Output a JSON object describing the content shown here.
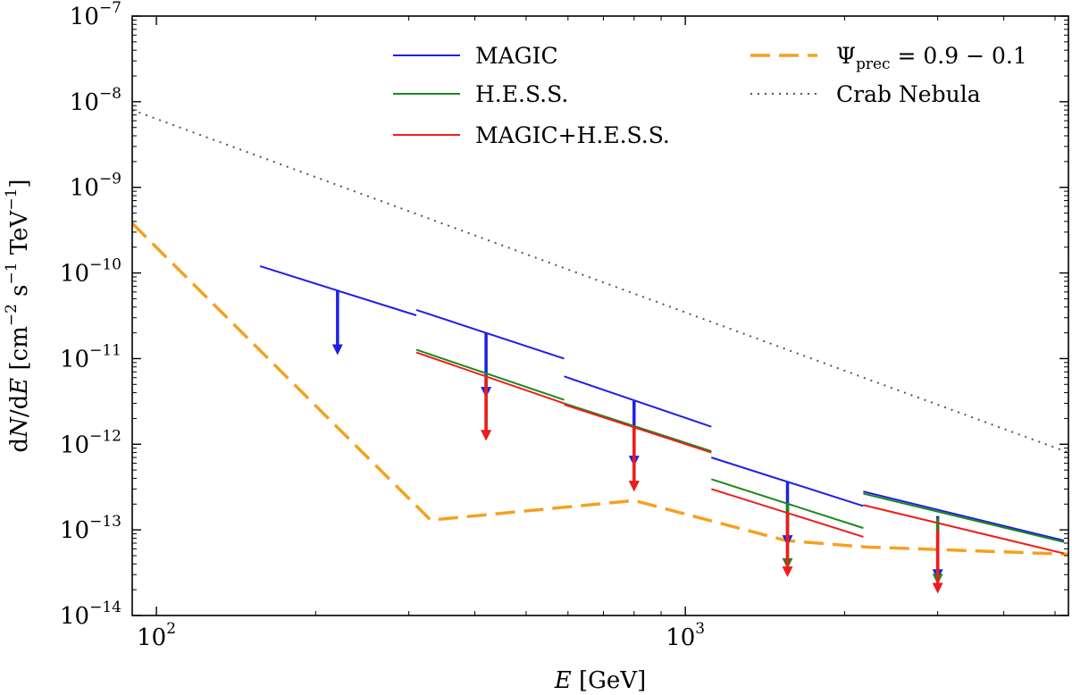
{
  "chart_data": {
    "type": "line",
    "title": "",
    "xscale": "log",
    "yscale": "log",
    "xlim": [
      90,
      5300
    ],
    "ylim": [
      1e-14,
      1e-07
    ],
    "xlabel": {
      "italic": "E",
      "rest": " [GeV]"
    },
    "ylabel": {
      "parts": [
        "d",
        "N",
        "/d",
        "E",
        " [cm",
        "−2",
        " s",
        "−1",
        " TeV",
        "−1",
        "]"
      ]
    },
    "x_ticks": [
      {
        "value": 100,
        "base": "10",
        "exp": "2"
      },
      {
        "value": 1000,
        "base": "10",
        "exp": "3"
      }
    ],
    "y_ticks": [
      {
        "value": 1e-14,
        "base": "10",
        "exp": "−14"
      },
      {
        "value": 1e-13,
        "base": "10",
        "exp": "−13"
      },
      {
        "value": 1e-12,
        "base": "10",
        "exp": "−12"
      },
      {
        "value": 1e-11,
        "base": "10",
        "exp": "−11"
      },
      {
        "value": 1e-10,
        "base": "10",
        "exp": "−10"
      },
      {
        "value": 1e-09,
        "base": "10",
        "exp": "−9"
      },
      {
        "value": 1e-08,
        "base": "10",
        "exp": "−8"
      },
      {
        "value": 1e-07,
        "base": "10",
        "exp": "−7"
      }
    ],
    "colors": {
      "magic": "#1f1fe6",
      "hess": "#1a8a1a",
      "combined": "#ee1c1c",
      "psi": "#f5a11e",
      "crab": "#555555"
    },
    "legend": {
      "placement": "top",
      "items": [
        {
          "key": "magic",
          "label": "MAGIC",
          "style": "solid"
        },
        {
          "key": "hess",
          "label": "H.E.S.S.",
          "style": "solid"
        },
        {
          "key": "combined",
          "label": "MAGIC+H.E.S.S.",
          "style": "solid"
        },
        {
          "key": "psi",
          "label_base": "Ψ",
          "label_sub": "prec",
          "label_rest": " = 0.9 − 0.1",
          "style": "dashed"
        },
        {
          "key": "crab",
          "label": "Crab Nebula",
          "style": "dotted"
        }
      ]
    },
    "crab_nebula": [
      [
        90,
        8e-09
      ],
      [
        5300,
        8e-13
      ]
    ],
    "psi_prec_curve": [
      [
        90,
        3.8e-10
      ],
      [
        330,
        1.3e-13
      ],
      [
        800,
        2.2e-13
      ],
      [
        1550,
        7.5e-14
      ],
      [
        2200,
        6.3e-14
      ],
      [
        5300,
        5.2e-14
      ]
    ],
    "upper_limit_bins": [
      {
        "series": "magic",
        "x_range": [
          157,
          310
        ],
        "y_range": [
          1.2e-10,
          3.2e-11
        ],
        "center": 220,
        "y_at_center": 6.3e-11,
        "arrow_to": 1.1e-11
      },
      {
        "series": "magic",
        "x_range": [
          310,
          590
        ],
        "y_range": [
          3.7e-11,
          1e-11
        ],
        "center": 420,
        "y_at_center": 2e-11,
        "arrow_to": 3.5e-12
      },
      {
        "series": "hess",
        "x_range": [
          310,
          590
        ],
        "y_range": [
          1.27e-11,
          3.3e-12
        ],
        "center": 420,
        "y_at_center": 6.5e-12,
        "arrow_to": 1.1e-12
      },
      {
        "series": "combined",
        "x_range": [
          310,
          590
        ],
        "y_range": [
          1.18e-11,
          3e-12
        ],
        "center": 420,
        "y_at_center": 6e-12,
        "arrow_to": 1.1e-12
      },
      {
        "series": "magic",
        "x_range": [
          590,
          1120
        ],
        "y_range": [
          6.2e-12,
          1.6e-12
        ],
        "center": 800,
        "y_at_center": 3.2e-12,
        "arrow_to": 5.5e-13
      },
      {
        "series": "hess",
        "x_range": [
          590,
          1120
        ],
        "y_range": [
          3e-12,
          8.3e-13
        ],
        "center": 800,
        "y_at_center": 1.6e-12,
        "arrow_to": 2.8e-13
      },
      {
        "series": "combined",
        "x_range": [
          590,
          1120
        ],
        "y_range": [
          2.9e-12,
          8e-13
        ],
        "center": 800,
        "y_at_center": 1.55e-12,
        "arrow_to": 2.8e-13
      },
      {
        "series": "magic",
        "x_range": [
          1120,
          2170
        ],
        "y_range": [
          7e-13,
          1.9e-13
        ],
        "center": 1560,
        "y_at_center": 3.6e-13,
        "arrow_to": 6.5e-14
      },
      {
        "series": "hess",
        "x_range": [
          1120,
          2170
        ],
        "y_range": [
          3.9e-13,
          1.05e-13
        ],
        "center": 1560,
        "y_at_center": 2e-13,
        "arrow_to": 3.5e-14
      },
      {
        "series": "combined",
        "x_range": [
          1120,
          2170
        ],
        "y_range": [
          3e-13,
          8.3e-14
        ],
        "center": 1560,
        "y_at_center": 1.55e-13,
        "arrow_to": 2.8e-14
      },
      {
        "series": "magic",
        "x_range": [
          2170,
          5200
        ],
        "y_range": [
          2.8e-13,
          7.5e-14
        ],
        "center": 3000,
        "y_at_center": 1.45e-13,
        "arrow_to": 2.6e-14
      },
      {
        "series": "hess",
        "x_range": [
          2170,
          5200
        ],
        "y_range": [
          2.65e-13,
          7.2e-14
        ],
        "center": 3000,
        "y_at_center": 1.38e-13,
        "arrow_to": 2.3e-14
      },
      {
        "series": "combined",
        "x_range": [
          2170,
          5200
        ],
        "y_range": [
          1.95e-13,
          5.3e-14
        ],
        "center": 3000,
        "y_at_center": 1e-13,
        "arrow_to": 1.8e-14
      }
    ]
  }
}
